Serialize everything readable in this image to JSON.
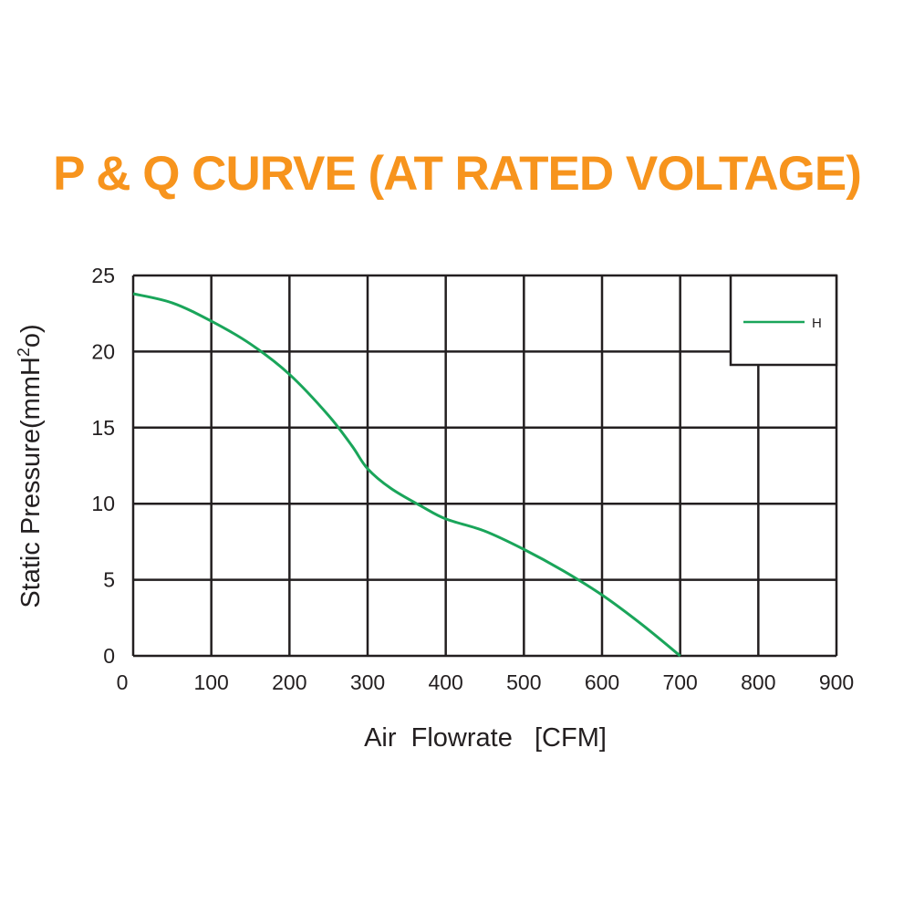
{
  "colors": {
    "title": "#f7941d",
    "series": "#1aa55a",
    "grid": "#231f20",
    "text": "#231f20"
  },
  "chart_data": {
    "type": "line",
    "title": "P & Q CURVE (AT RATED VOLTAGE)",
    "xlabel": "Air  Flowrate   [CFM]",
    "ylabel_main": "Static Pressure(mmH",
    "ylabel_sup": "2",
    "ylabel_tail": "o)",
    "xlim": [
      0,
      900
    ],
    "ylim": [
      0,
      25
    ],
    "x_ticks": [
      0,
      100,
      200,
      300,
      400,
      500,
      600,
      700,
      800,
      900
    ],
    "y_ticks": [
      0,
      5,
      10,
      15,
      20,
      25
    ],
    "x_tick_labels": [
      "0",
      "100",
      "200",
      "300",
      "400",
      "500",
      "600",
      "700",
      "800",
      "900"
    ],
    "y_tick_labels": [
      "0",
      "5",
      "10",
      "15",
      "20",
      "25"
    ],
    "grid": true,
    "legend_position": "top-right",
    "series": [
      {
        "name": "H",
        "x": [
          0,
          50,
          100,
          150,
          200,
          250,
          280,
          300,
          330,
          370,
          400,
          450,
          500,
          550,
          600,
          650,
          700
        ],
        "y": [
          23.8,
          23.2,
          22.0,
          20.5,
          18.5,
          15.8,
          13.8,
          12.3,
          11.0,
          9.8,
          9.0,
          8.2,
          7.0,
          5.6,
          4.0,
          2.1,
          0
        ]
      }
    ]
  }
}
